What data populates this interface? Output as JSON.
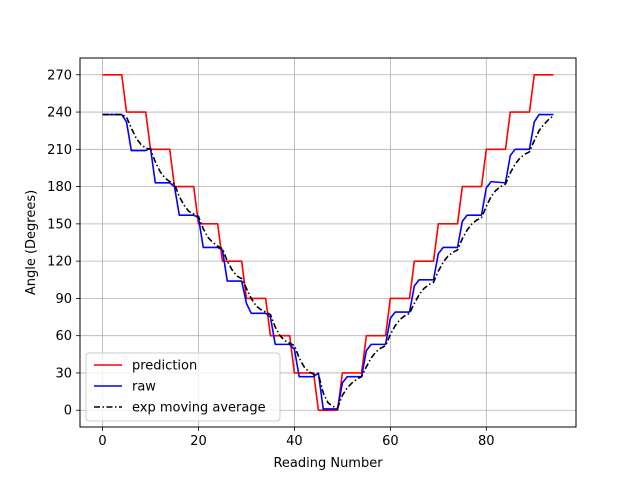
{
  "chart_data": {
    "type": "line",
    "title": "",
    "xlabel": "Reading Number",
    "ylabel": "Angle (Degrees)",
    "xlim": [
      -4.7,
      98.7
    ],
    "ylim": [
      -13.5,
      283.5
    ],
    "xticks": [
      0,
      20,
      40,
      60,
      80
    ],
    "yticks": [
      0,
      30,
      60,
      90,
      120,
      150,
      180,
      210,
      240,
      270
    ],
    "grid": true,
    "legend_position": "lower-left",
    "series": [
      {
        "name": "prediction",
        "color": "#ff0000",
        "style": "solid",
        "points": [
          [
            0,
            270
          ],
          [
            4,
            270
          ],
          [
            5,
            240
          ],
          [
            9,
            240
          ],
          [
            10,
            210
          ],
          [
            14,
            210
          ],
          [
            15,
            180
          ],
          [
            19,
            180
          ],
          [
            20,
            150
          ],
          [
            24,
            150
          ],
          [
            25,
            120
          ],
          [
            29,
            120
          ],
          [
            30,
            90
          ],
          [
            34,
            90
          ],
          [
            35,
            60
          ],
          [
            39,
            60
          ],
          [
            40,
            30
          ],
          [
            44,
            30
          ],
          [
            45,
            0
          ],
          [
            49,
            0
          ],
          [
            50,
            30
          ],
          [
            54,
            30
          ],
          [
            55,
            60
          ],
          [
            59,
            60
          ],
          [
            60,
            90
          ],
          [
            64,
            90
          ],
          [
            65,
            120
          ],
          [
            69,
            120
          ],
          [
            70,
            150
          ],
          [
            74,
            150
          ],
          [
            75,
            180
          ],
          [
            79,
            180
          ],
          [
            80,
            210
          ],
          [
            84,
            210
          ],
          [
            85,
            240
          ],
          [
            89,
            240
          ],
          [
            90,
            270
          ],
          [
            94,
            270
          ]
        ]
      },
      {
        "name": "raw",
        "color": "#0000ff",
        "style": "solid",
        "points": [
          [
            0,
            238
          ],
          [
            4,
            238
          ],
          [
            5,
            232
          ],
          [
            6,
            209
          ],
          [
            9,
            209
          ],
          [
            10,
            211
          ],
          [
            11,
            183
          ],
          [
            14,
            183
          ],
          [
            15,
            180
          ],
          [
            16,
            157
          ],
          [
            19,
            157
          ],
          [
            20,
            155
          ],
          [
            21,
            131
          ],
          [
            24,
            131
          ],
          [
            25,
            129
          ],
          [
            26,
            104
          ],
          [
            29,
            104
          ],
          [
            30,
            86
          ],
          [
            31,
            78
          ],
          [
            34,
            78
          ],
          [
            35,
            75
          ],
          [
            36,
            53
          ],
          [
            39,
            53
          ],
          [
            40,
            49
          ],
          [
            41,
            27
          ],
          [
            44,
            27
          ],
          [
            45,
            30
          ],
          [
            46,
            1
          ],
          [
            49,
            1
          ],
          [
            50,
            22
          ],
          [
            51,
            27
          ],
          [
            54,
            27
          ],
          [
            55,
            48
          ],
          [
            56,
            53
          ],
          [
            59,
            53
          ],
          [
            60,
            74
          ],
          [
            61,
            79
          ],
          [
            64,
            79
          ],
          [
            65,
            100
          ],
          [
            66,
            105
          ],
          [
            69,
            105
          ],
          [
            70,
            126
          ],
          [
            71,
            131
          ],
          [
            74,
            131
          ],
          [
            75,
            152
          ],
          [
            76,
            157
          ],
          [
            79,
            157
          ],
          [
            80,
            179
          ],
          [
            81,
            184
          ],
          [
            84,
            183
          ],
          [
            85,
            205
          ],
          [
            86,
            210
          ],
          [
            89,
            210
          ],
          [
            90,
            232
          ],
          [
            91,
            238
          ],
          [
            94,
            238
          ]
        ]
      },
      {
        "name": "exp moving average",
        "color": "#000000",
        "style": "dashdot",
        "points": [
          [
            0,
            238
          ],
          [
            4,
            238
          ],
          [
            5,
            236
          ],
          [
            6,
            227
          ],
          [
            7,
            219
          ],
          [
            8,
            214
          ],
          [
            9,
            211
          ],
          [
            10,
            210
          ],
          [
            11,
            200
          ],
          [
            12,
            192
          ],
          [
            13,
            187
          ],
          [
            14,
            184
          ],
          [
            15,
            182
          ],
          [
            16,
            172
          ],
          [
            17,
            165
          ],
          [
            18,
            160
          ],
          [
            19,
            158
          ],
          [
            20,
            156
          ],
          [
            21,
            146
          ],
          [
            22,
            139
          ],
          [
            23,
            135
          ],
          [
            24,
            132
          ],
          [
            25,
            130
          ],
          [
            26,
            120
          ],
          [
            27,
            113
          ],
          [
            28,
            108
          ],
          [
            29,
            106
          ],
          [
            30,
            98
          ],
          [
            31,
            90
          ],
          [
            32,
            84
          ],
          [
            33,
            81
          ],
          [
            34,
            79
          ],
          [
            35,
            77
          ],
          [
            36,
            67
          ],
          [
            37,
            60
          ],
          [
            38,
            56
          ],
          [
            39,
            54
          ],
          [
            40,
            52
          ],
          [
            41,
            42
          ],
          [
            42,
            35
          ],
          [
            43,
            31
          ],
          [
            44,
            29
          ],
          [
            45,
            29
          ],
          [
            46,
            14
          ],
          [
            47,
            6
          ],
          [
            48,
            3
          ],
          [
            49,
            2
          ],
          [
            50,
            12
          ],
          [
            51,
            18
          ],
          [
            52,
            22
          ],
          [
            53,
            25
          ],
          [
            54,
            27
          ],
          [
            55,
            35
          ],
          [
            56,
            42
          ],
          [
            57,
            47
          ],
          [
            58,
            50
          ],
          [
            59,
            52
          ],
          [
            60,
            61
          ],
          [
            61,
            68
          ],
          [
            62,
            73
          ],
          [
            63,
            76
          ],
          [
            64,
            78
          ],
          [
            65,
            86
          ],
          [
            66,
            93
          ],
          [
            67,
            98
          ],
          [
            68,
            101
          ],
          [
            69,
            103
          ],
          [
            70,
            112
          ],
          [
            71,
            119
          ],
          [
            72,
            124
          ],
          [
            73,
            127
          ],
          [
            74,
            129
          ],
          [
            75,
            138
          ],
          [
            76,
            145
          ],
          [
            77,
            150
          ],
          [
            78,
            153
          ],
          [
            79,
            155
          ],
          [
            80,
            164
          ],
          [
            81,
            172
          ],
          [
            82,
            177
          ],
          [
            83,
            180
          ],
          [
            84,
            182
          ],
          [
            85,
            191
          ],
          [
            86,
            198
          ],
          [
            87,
            203
          ],
          [
            88,
            206
          ],
          [
            89,
            208
          ],
          [
            90,
            217
          ],
          [
            91,
            225
          ],
          [
            92,
            230
          ],
          [
            93,
            234
          ],
          [
            94,
            237
          ]
        ]
      }
    ]
  }
}
